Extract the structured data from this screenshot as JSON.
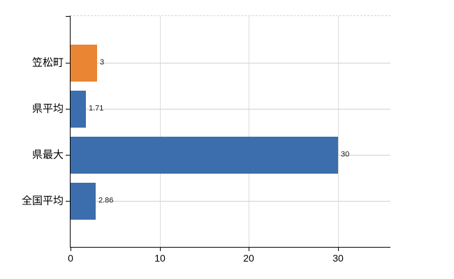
{
  "chart_data": {
    "type": "bar",
    "orientation": "horizontal",
    "title": "",
    "xlabel": "",
    "ylabel": "",
    "categories": [
      "笠松町",
      "県平均",
      "県最大",
      "全国平均"
    ],
    "values": [
      3,
      1.71,
      30,
      2.86
    ],
    "value_labels": [
      "3",
      "1.71",
      "30",
      "2.86"
    ],
    "series_colors": [
      "#EA8633",
      "#3C6EAE",
      "#3C6EAE",
      "#3C6EAE"
    ],
    "x_tick_labels": [
      "0",
      "10",
      "20",
      "30"
    ],
    "x_tick_values": [
      0,
      10,
      20,
      30
    ],
    "xlim": [
      0,
      35.9
    ],
    "grid": true,
    "legend": false
  },
  "colors": {
    "highlight_bar": "#EA8633",
    "default_bar": "#3C6EAE",
    "h_gridline": "#cbd5c9",
    "v_gridline": "#dcdcda",
    "top_gridline": "#d4d4d4",
    "axis": "#000000",
    "text": "#000000",
    "background": "#ffffff"
  }
}
